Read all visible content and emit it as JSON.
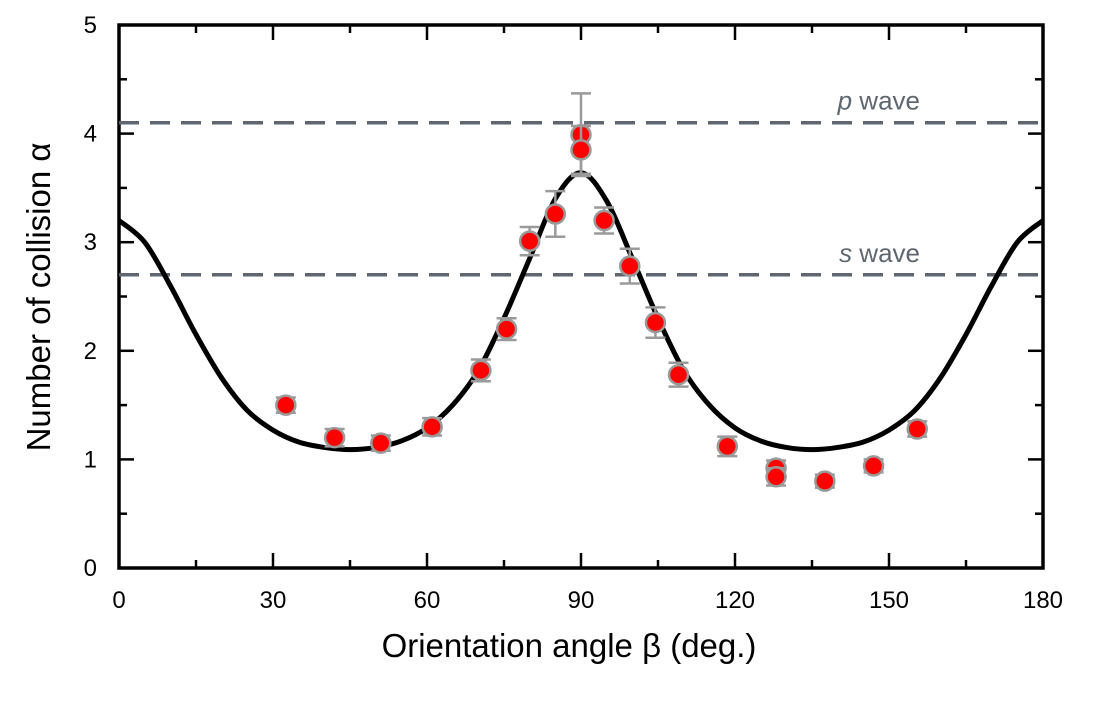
{
  "chart_data": {
    "type": "scatter",
    "xlabel": "Orientation angle β (deg.)",
    "ylabel": "Number of collision α",
    "xlim": [
      0,
      180
    ],
    "ylim": [
      0,
      5
    ],
    "xticks": [
      0,
      30,
      60,
      90,
      120,
      150,
      180
    ],
    "yticks": [
      0,
      1,
      2,
      3,
      4,
      5
    ],
    "grid": false,
    "colors": {
      "points": "#ff0000",
      "point_edge": "#9a9a9a",
      "error_bars": "#9a9a9a",
      "curve": "#000000",
      "reference_lines": "#5e6770"
    },
    "reference_lines": [
      {
        "y": 4.1,
        "label_italic": "p",
        "label_rest": " wave"
      },
      {
        "y": 2.7,
        "label_italic": "s",
        "label_rest": " wave"
      }
    ],
    "curve": {
      "x": [
        0,
        5,
        10,
        15,
        20,
        25,
        30,
        35,
        40,
        45,
        50,
        55,
        60,
        65,
        70,
        75,
        80,
        85,
        90,
        95,
        100,
        105,
        110,
        115,
        120,
        125,
        130,
        135,
        140,
        145,
        150,
        155,
        160,
        165,
        170,
        175,
        180
      ],
      "y": [
        3.2,
        3.0,
        2.6,
        2.15,
        1.75,
        1.45,
        1.27,
        1.16,
        1.11,
        1.09,
        1.11,
        1.17,
        1.29,
        1.5,
        1.82,
        2.3,
        2.85,
        3.4,
        3.64,
        3.38,
        2.85,
        2.3,
        1.82,
        1.5,
        1.29,
        1.17,
        1.11,
        1.09,
        1.11,
        1.16,
        1.27,
        1.45,
        1.75,
        2.15,
        2.6,
        3.0,
        3.2
      ]
    },
    "points": [
      {
        "x": 32.5,
        "y": 1.5,
        "err": 0.07
      },
      {
        "x": 42,
        "y": 1.2,
        "err": 0.08
      },
      {
        "x": 51,
        "y": 1.15,
        "err": 0.07
      },
      {
        "x": 61,
        "y": 1.3,
        "err": 0.08
      },
      {
        "x": 70.5,
        "y": 1.82,
        "err": 0.1
      },
      {
        "x": 75.5,
        "y": 2.2,
        "err": 0.1
      },
      {
        "x": 80,
        "y": 3.01,
        "err": 0.13
      },
      {
        "x": 85,
        "y": 3.26,
        "err": 0.21
      },
      {
        "x": 90,
        "y": 3.99,
        "err": 0.38
      },
      {
        "x": 90,
        "y": 3.85,
        "err": 0.22
      },
      {
        "x": 94.5,
        "y": 3.2,
        "err": 0.12
      },
      {
        "x": 99.5,
        "y": 2.78,
        "err": 0.16
      },
      {
        "x": 104.5,
        "y": 2.26,
        "err": 0.14
      },
      {
        "x": 109,
        "y": 1.78,
        "err": 0.11
      },
      {
        "x": 118.5,
        "y": 1.12,
        "err": 0.09
      },
      {
        "x": 128,
        "y": 0.92,
        "err": 0.07
      },
      {
        "x": 128,
        "y": 0.84,
        "err": 0.08
      },
      {
        "x": 137.5,
        "y": 0.8,
        "err": 0.06
      },
      {
        "x": 147,
        "y": 0.94,
        "err": 0.06
      },
      {
        "x": 155.5,
        "y": 1.28,
        "err": 0.07
      }
    ]
  }
}
